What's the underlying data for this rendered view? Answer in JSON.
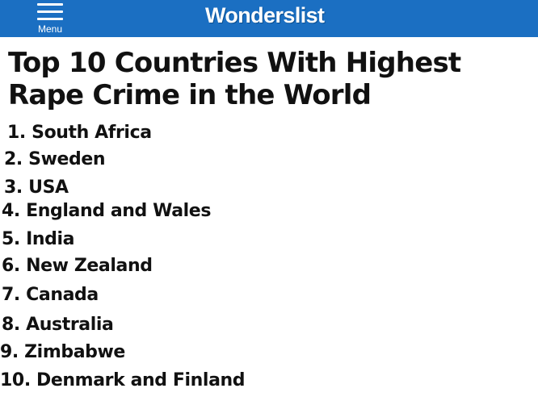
{
  "header": {
    "menu_label": "Menu",
    "site_name": "Wonderslist",
    "background_color": "#1b6fc2"
  },
  "article": {
    "title": "Top 10 Countries With Highest Rape Crime in the World",
    "items": [
      "1. South Africa",
      "2. Sweden",
      "3. USA",
      "4. England and Wales",
      "5. India",
      "6. New Zealand",
      "7. Canada",
      "8. Australia",
      "9. Zimbabwe",
      "10. Denmark and Finland"
    ]
  }
}
